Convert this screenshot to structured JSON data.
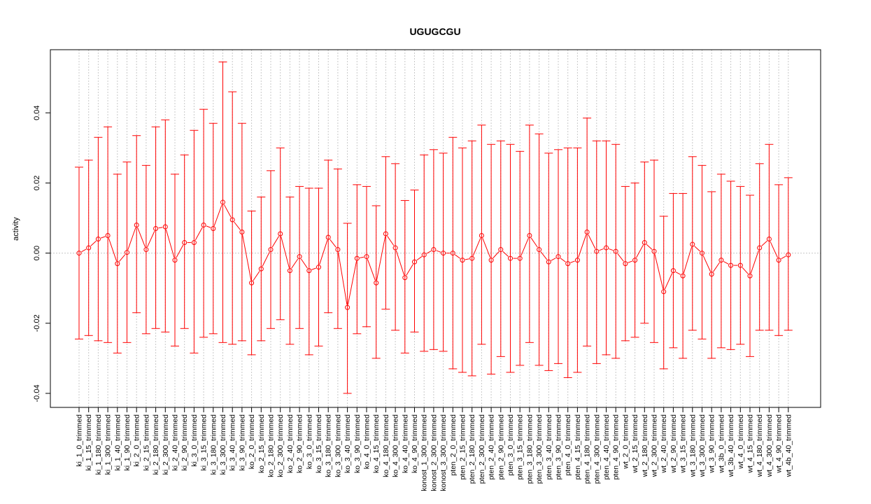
{
  "chart_data": {
    "type": "line",
    "title": "UGUGCGU",
    "xlabel": "",
    "ylabel": "activity",
    "ylim": [
      -0.044,
      0.058
    ],
    "yticks": [
      -0.04,
      -0.02,
      0.0,
      0.02,
      0.04
    ],
    "ytick_labels": [
      "-0.04",
      "-0.02",
      "0.00",
      "0.02",
      "0.04"
    ],
    "grid": true,
    "series_color": "#ff0000",
    "grid_color": "#c8c8c8",
    "categories": [
      "ki_1_0_trimmed",
      "ki_1_15_trimmed",
      "ki_1_180_trimmed",
      "ki_1_300_trimmed",
      "ki_1_40_trimmed",
      "ki_1_90_trimmed",
      "ki_2_0_trimmed",
      "ki_2_15_trimmed",
      "ki_2_180_trimmed",
      "ki_2_300_trimmed",
      "ki_2_40_trimmed",
      "ki_2_90_trimmed",
      "ki_3_0_trimmed",
      "ki_3_15_trimmed",
      "ki_3_180_trimmed",
      "ki_3_300_trimmed",
      "ki_3_40_trimmed",
      "ki_3_90_trimmed",
      "ko_2_0_trimmed",
      "ko_2_15_trimmed",
      "ko_2_180_trimmed",
      "ko_2_300_trimmed",
      "ko_2_40_trimmed",
      "ko_2_90_trimmed",
      "ko_3_0_trimmed",
      "ko_3_15_trimmed",
      "ko_3_180_trimmed",
      "ko_3_300_trimmed",
      "ko_3_40_trimmed",
      "ko_3_90_trimmed",
      "ko_4_0_trimmed",
      "ko_4_15_trimmed",
      "ko_4_180_trimmed",
      "ko_4_300_trimmed",
      "ko_4_40_trimmed",
      "ko_4_90_trimmed",
      "konost_1_300_trimmed",
      "konost_2_300_trimmed",
      "konost_3_300_trimmed",
      "pten_2_0_trimmed",
      "pten_2_15_trimmed",
      "pten_2_180_trimmed",
      "pten_2_300_trimmed",
      "pten_2_40_trimmed",
      "pten_2_90_trimmed",
      "pten_3_0_trimmed",
      "pten_3_15_trimmed",
      "pten_3_180_trimmed",
      "pten_3_300_trimmed",
      "pten_3_40_trimmed",
      "pten_3_90_trimmed",
      "pten_4_0_trimmed",
      "pten_4_15_trimmed",
      "pten_4_180_trimmed",
      "pten_4_300_trimmed",
      "pten_4_40_trimmed",
      "pten_4_90_trimmed",
      "wt_2_0_trimmed",
      "wt_2_15_trimmed",
      "wt_2_180_trimmed",
      "wt_2_300_trimmed",
      "wt_2_40_trimmed",
      "wt_2_90_trimmed",
      "wt_3_15_trimmed",
      "wt_3_180_trimmed",
      "wt_3_300_trimmed",
      "wt_3_90_trimmed",
      "wt_3b_0_trimmed",
      "wt_3b_40_trimmed",
      "wt_4_0_trimmed",
      "wt_4_15_trimmed",
      "wt_4_180_trimmed",
      "wt_4_300_trimmed",
      "wt_4_90_trimmed",
      "wt_4b_40_trimmed"
    ],
    "values": [
      0.0,
      0.0015,
      0.004,
      0.005,
      -0.003,
      0.0002,
      0.008,
      0.001,
      0.007,
      0.0075,
      -0.002,
      0.003,
      0.003,
      0.008,
      0.007,
      0.0145,
      0.0095,
      0.006,
      -0.0085,
      -0.0045,
      0.001,
      0.0055,
      -0.005,
      -0.001,
      -0.005,
      -0.004,
      0.0045,
      0.001,
      -0.0155,
      -0.0015,
      -0.001,
      -0.0085,
      0.0055,
      0.0015,
      -0.007,
      -0.0025,
      -0.0005,
      0.001,
      0.0,
      0.0,
      -0.002,
      -0.0015,
      0.005,
      -0.002,
      0.001,
      -0.0015,
      -0.0015,
      0.005,
      0.001,
      -0.0025,
      -0.001,
      -0.003,
      -0.002,
      0.006,
      0.0005,
      0.0015,
      0.0005,
      -0.003,
      -0.002,
      0.003,
      0.0005,
      -0.011,
      -0.005,
      -0.0065,
      0.0025,
      0.0,
      -0.006,
      -0.002,
      -0.0035,
      -0.0035,
      -0.0065,
      0.0015,
      0.004,
      -0.002,
      -0.0005
    ],
    "upper": [
      0.0245,
      0.0265,
      0.033,
      0.036,
      0.0225,
      0.026,
      0.0335,
      0.025,
      0.036,
      0.038,
      0.0225,
      0.028,
      0.035,
      0.041,
      0.037,
      0.0545,
      0.046,
      0.037,
      0.012,
      0.016,
      0.0235,
      0.03,
      0.016,
      0.019,
      0.0185,
      0.0185,
      0.0265,
      0.024,
      0.0085,
      0.0195,
      0.019,
      0.0135,
      0.0275,
      0.0255,
      0.015,
      0.018,
      0.028,
      0.0295,
      0.0285,
      0.033,
      0.03,
      0.032,
      0.0365,
      0.031,
      0.032,
      0.031,
      0.029,
      0.0365,
      0.034,
      0.0285,
      0.0295,
      0.03,
      0.03,
      0.0385,
      0.032,
      0.032,
      0.031,
      0.019,
      0.02,
      0.026,
      0.0265,
      0.0105,
      0.017,
      0.017,
      0.0275,
      0.025,
      0.0175,
      0.0225,
      0.0205,
      0.019,
      0.0165,
      0.0255,
      0.031,
      0.0195,
      0.0215
    ],
    "lower": [
      -0.0245,
      -0.0235,
      -0.025,
      -0.0255,
      -0.0285,
      -0.0255,
      -0.017,
      -0.023,
      -0.0215,
      -0.0225,
      -0.0265,
      -0.0215,
      -0.0285,
      -0.024,
      -0.023,
      -0.0255,
      -0.026,
      -0.025,
      -0.029,
      -0.025,
      -0.0215,
      -0.019,
      -0.026,
      -0.0215,
      -0.029,
      -0.0265,
      -0.017,
      -0.0215,
      -0.04,
      -0.023,
      -0.021,
      -0.03,
      -0.016,
      -0.022,
      -0.0285,
      -0.0225,
      -0.028,
      -0.0275,
      -0.028,
      -0.033,
      -0.034,
      -0.035,
      -0.026,
      -0.0345,
      -0.0295,
      -0.034,
      -0.032,
      -0.0255,
      -0.032,
      -0.0335,
      -0.0315,
      -0.0355,
      -0.034,
      -0.0265,
      -0.0315,
      -0.029,
      -0.03,
      -0.025,
      -0.024,
      -0.02,
      -0.0255,
      -0.033,
      -0.027,
      -0.03,
      -0.022,
      -0.0245,
      -0.03,
      -0.027,
      -0.0275,
      -0.026,
      -0.0295,
      -0.022,
      -0.022,
      -0.0235,
      -0.022
    ]
  }
}
